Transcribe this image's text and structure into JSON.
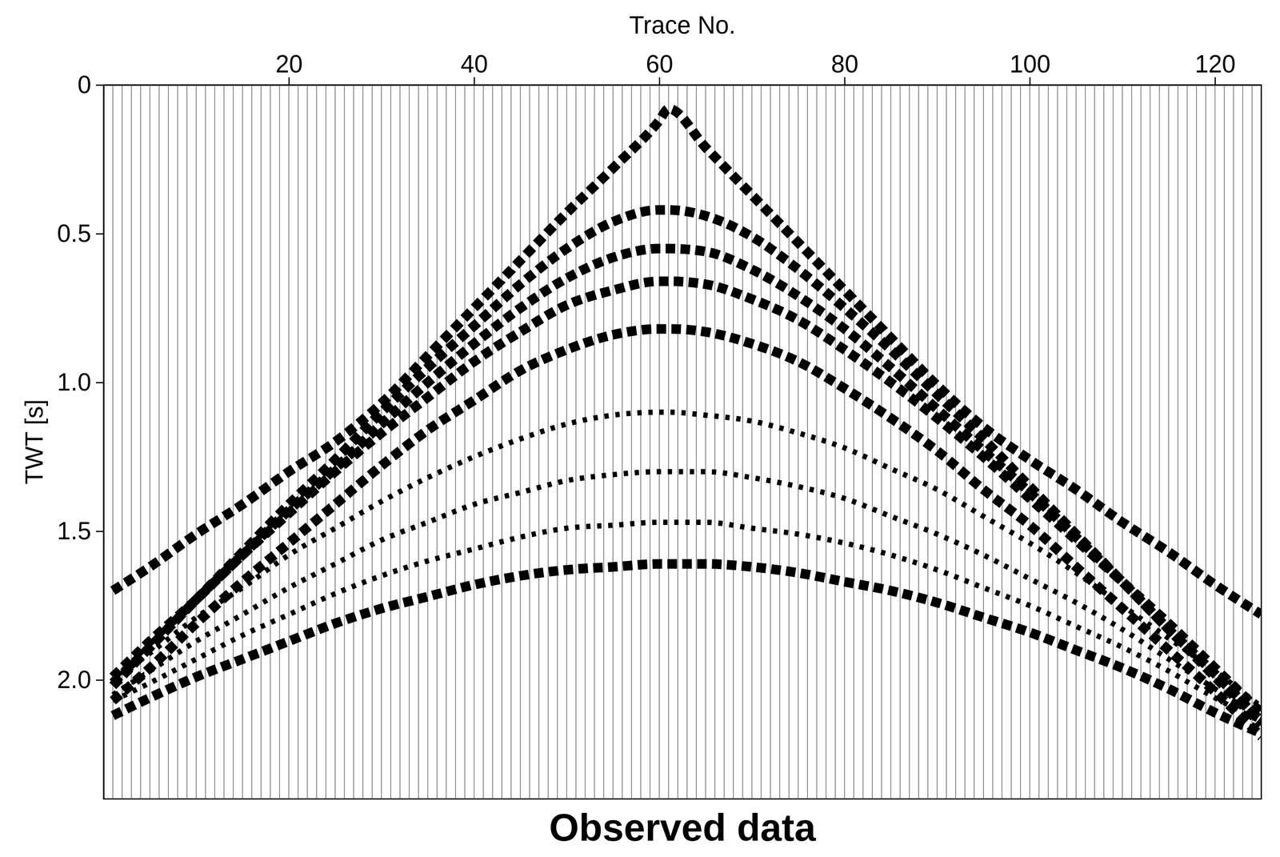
{
  "chart_data": {
    "type": "line",
    "title": "Observed data",
    "x_label": "Trace No.",
    "y_label": "TWT [s]",
    "x": [
      1,
      5,
      10,
      15,
      20,
      25,
      30,
      35,
      40,
      45,
      50,
      55,
      60,
      61,
      65,
      70,
      75,
      80,
      85,
      90,
      95,
      100,
      105,
      110,
      115,
      120,
      125
    ],
    "series": [
      {
        "color": "#000000",
        "line_style": "dashed",
        "values": [
          1.7,
          1.62,
          1.51,
          1.41,
          1.3,
          1.2,
          1.07,
          0.91,
          0.75,
          0.59,
          0.43,
          0.28,
          0.12,
          0.08,
          0.21,
          0.37,
          0.53,
          0.69,
          0.85,
          1.01,
          1.15,
          1.26,
          1.36,
          1.47,
          1.57,
          1.68,
          1.78
        ]
      },
      {
        "color": "#000000",
        "line_style": "dashed",
        "values": [
          2.02,
          1.89,
          1.73,
          1.57,
          1.41,
          1.26,
          1.1,
          0.95,
          0.81,
          0.67,
          0.55,
          0.46,
          0.42,
          0.42,
          0.44,
          0.51,
          0.62,
          0.75,
          0.89,
          1.04,
          1.19,
          1.35,
          1.51,
          1.67,
          1.83,
          1.99,
          2.15
        ]
      },
      {
        "color": "#000000",
        "line_style": "dashed",
        "values": [
          2.01,
          1.89,
          1.73,
          1.58,
          1.43,
          1.29,
          1.14,
          1.0,
          0.87,
          0.75,
          0.65,
          0.58,
          0.55,
          0.55,
          0.56,
          0.62,
          0.71,
          0.82,
          0.95,
          1.09,
          1.23,
          1.37,
          1.52,
          1.67,
          1.83,
          1.98,
          2.14
        ]
      },
      {
        "color": "#000000",
        "line_style": "dashed",
        "values": [
          1.99,
          1.87,
          1.73,
          1.58,
          1.44,
          1.3,
          1.17,
          1.05,
          0.93,
          0.83,
          0.74,
          0.69,
          0.66,
          0.66,
          0.67,
          0.72,
          0.79,
          0.89,
          1.0,
          1.12,
          1.25,
          1.39,
          1.53,
          1.67,
          1.81,
          1.96,
          2.11
        ]
      },
      {
        "color": "#000000",
        "line_style": "dashed",
        "values": [
          2.07,
          1.96,
          1.81,
          1.67,
          1.54,
          1.41,
          1.28,
          1.16,
          1.06,
          0.96,
          0.89,
          0.84,
          0.82,
          0.82,
          0.83,
          0.87,
          0.93,
          1.02,
          1.12,
          1.23,
          1.36,
          1.48,
          1.62,
          1.76,
          1.9,
          2.04,
          2.19
        ]
      },
      {
        "color": "#000000",
        "line_style": "dotted",
        "values": [
          2.0,
          1.91,
          1.79,
          1.69,
          1.58,
          1.49,
          1.4,
          1.32,
          1.25,
          1.19,
          1.14,
          1.11,
          1.1,
          1.1,
          1.11,
          1.13,
          1.17,
          1.22,
          1.29,
          1.36,
          1.45,
          1.54,
          1.64,
          1.75,
          1.86,
          1.97,
          2.09
        ]
      },
      {
        "color": "#000000",
        "line_style": "dotted",
        "values": [
          2.05,
          1.97,
          1.87,
          1.78,
          1.69,
          1.61,
          1.53,
          1.47,
          1.41,
          1.37,
          1.33,
          1.31,
          1.3,
          1.3,
          1.3,
          1.32,
          1.35,
          1.39,
          1.45,
          1.51,
          1.58,
          1.66,
          1.74,
          1.83,
          1.93,
          2.03,
          2.13
        ]
      },
      {
        "color": "#000000",
        "line_style": "dotted",
        "values": [
          2.07,
          2.01,
          1.93,
          1.85,
          1.78,
          1.71,
          1.65,
          1.6,
          1.56,
          1.52,
          1.49,
          1.48,
          1.47,
          1.47,
          1.47,
          1.49,
          1.51,
          1.54,
          1.58,
          1.63,
          1.69,
          1.75,
          1.82,
          1.89,
          1.97,
          2.06,
          2.14
        ]
      },
      {
        "color": "#000000",
        "line_style": "dashed",
        "values": [
          2.12,
          2.06,
          1.99,
          1.93,
          1.87,
          1.81,
          1.76,
          1.72,
          1.68,
          1.65,
          1.63,
          1.62,
          1.61,
          1.61,
          1.61,
          1.62,
          1.64,
          1.67,
          1.7,
          1.74,
          1.79,
          1.84,
          1.9,
          1.96,
          2.03,
          2.11,
          2.18
        ]
      }
    ],
    "xlim": [
      0,
      125
    ],
    "ylim": [
      0,
      2.4
    ],
    "xticks": [
      20,
      40,
      60,
      80,
      100,
      120
    ],
    "yticks": [
      0,
      0.5,
      {
        "value": 1,
        "label": "1.0"
      },
      1.5,
      {
        "value": 2,
        "label": "2.0"
      }
    ]
  }
}
